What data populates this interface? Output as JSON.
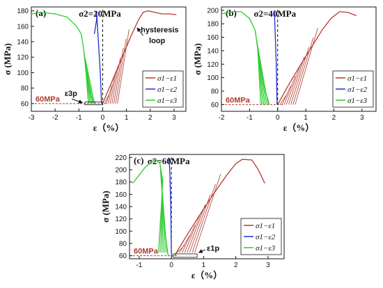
{
  "colors": {
    "red": "#b03a2e",
    "blue": "#1f2ecf",
    "green": "#2ecc2e",
    "dash": "#111111"
  },
  "chart_data": [
    {
      "type": "line",
      "panel_label": "(a)",
      "title": "σ2=20MPa",
      "xlabel": "ε（%）",
      "ylabel": "σ (MPa)",
      "xlim": [
        -3,
        3.5
      ],
      "ylim": [
        50,
        185
      ],
      "xticks": [
        "-3",
        "-2",
        "-1",
        "0",
        "1",
        "2",
        "3"
      ],
      "yticks": [
        "60",
        "80",
        "100",
        "120",
        "140",
        "160",
        "180"
      ],
      "annotations": {
        "hysteresis": "hysteresis",
        "loop": "loop",
        "ref_level": "60MPa",
        "strain_label": "ε3p"
      },
      "legend": [
        "σ1−ε1",
        "σ1−ε2",
        "σ1−ε3"
      ],
      "series": [
        {
          "name": "σ1−ε1",
          "color": "red",
          "x": [
            0,
            0.3,
            0.6,
            0.9,
            1.2,
            1.5,
            1.7,
            1.9,
            2.2,
            2.5,
            2.8,
            3.1
          ],
          "y": [
            60,
            82,
            104,
            126,
            148,
            168,
            178,
            180,
            178,
            176,
            176,
            175
          ]
        },
        {
          "name": "σ1−ε2",
          "color": "blue",
          "x": [
            -0.05,
            -0.1,
            -0.2,
            -0.25,
            -0.3,
            -0.25,
            -0.35
          ],
          "y": [
            60,
            100,
            150,
            175,
            180,
            170,
            150
          ]
        },
        {
          "name": "σ1−ε3",
          "color": "green",
          "x": [
            -0.3,
            -0.5,
            -0.7,
            -0.8,
            -0.9,
            -1.1,
            -1.5,
            -2.0,
            -2.6,
            -3.0
          ],
          "y": [
            60,
            70,
            100,
            130,
            150,
            160,
            172,
            176,
            178,
            176
          ]
        }
      ]
    },
    {
      "type": "line",
      "panel_label": "(b)",
      "title": "σ2=40MPa",
      "xlabel": "ε（%）",
      "ylabel": "σ (MPa)",
      "xlim": [
        -2,
        3.5
      ],
      "ylim": [
        50,
        205
      ],
      "xticks": [
        "-2",
        "-1",
        "0",
        "1",
        "2",
        "3"
      ],
      "yticks": [
        "60",
        "80",
        "100",
        "120",
        "140",
        "160",
        "180",
        "200"
      ],
      "annotations": {
        "ref_level": "60MPa"
      },
      "legend": [
        "σ1−ε1",
        "σ1−ε2",
        "σ1−ε3"
      ],
      "series": [
        {
          "name": "σ1−ε1",
          "color": "red",
          "x": [
            0,
            0.4,
            0.8,
            1.2,
            1.6,
            1.9,
            2.2,
            2.5,
            2.8
          ],
          "y": [
            60,
            90,
            118,
            145,
            172,
            188,
            198,
            197,
            192
          ]
        },
        {
          "name": "σ1−ε2",
          "color": "blue",
          "x": [
            -0.02,
            -0.05,
            -0.1,
            -0.12,
            -0.1
          ],
          "y": [
            60,
            120,
            180,
            200,
            190
          ]
        },
        {
          "name": "σ1−ε3",
          "color": "green",
          "x": [
            -0.3,
            -0.5,
            -0.7,
            -0.8,
            -1.0,
            -1.3,
            -1.6,
            -2.0
          ],
          "y": [
            60,
            90,
            140,
            170,
            188,
            198,
            198,
            195
          ]
        }
      ]
    },
    {
      "type": "line",
      "panel_label": "(c)",
      "title": "σ2=60MPa",
      "xlabel": "ε（%）",
      "ylabel": "σ (MPa)",
      "xlim": [
        -1.3,
        3.5
      ],
      "ylim": [
        55,
        225
      ],
      "xticks": [
        "-1",
        "0",
        "1",
        "2",
        "3"
      ],
      "yticks": [
        "60",
        "80",
        "100",
        "120",
        "140",
        "160",
        "180",
        "200",
        "220"
      ],
      "annotations": {
        "ref_level": "60MPa",
        "strain_label": "ε1p"
      },
      "legend": [
        "σ1−ε1",
        "σ1−ε2",
        "σ1−ε3"
      ],
      "series": [
        {
          "name": "σ1−ε1",
          "color": "red",
          "x": [
            0.1,
            0.5,
            0.9,
            1.3,
            1.7,
            2.0,
            2.2,
            2.5,
            2.7,
            2.9
          ],
          "y": [
            60,
            95,
            128,
            160,
            190,
            210,
            217,
            216,
            200,
            178
          ]
        },
        {
          "name": "σ1−ε2",
          "color": "blue",
          "x": [
            0,
            -0.02,
            -0.05,
            -0.08,
            -0.05
          ],
          "y": [
            60,
            140,
            200,
            220,
            210
          ]
        },
        {
          "name": "σ1−ε3",
          "color": "green",
          "x": [
            -0.1,
            -0.2,
            -0.3,
            -0.35,
            -0.5,
            -0.8,
            -1.2
          ],
          "y": [
            60,
            100,
            170,
            210,
            217,
            205,
            178
          ]
        }
      ]
    }
  ]
}
